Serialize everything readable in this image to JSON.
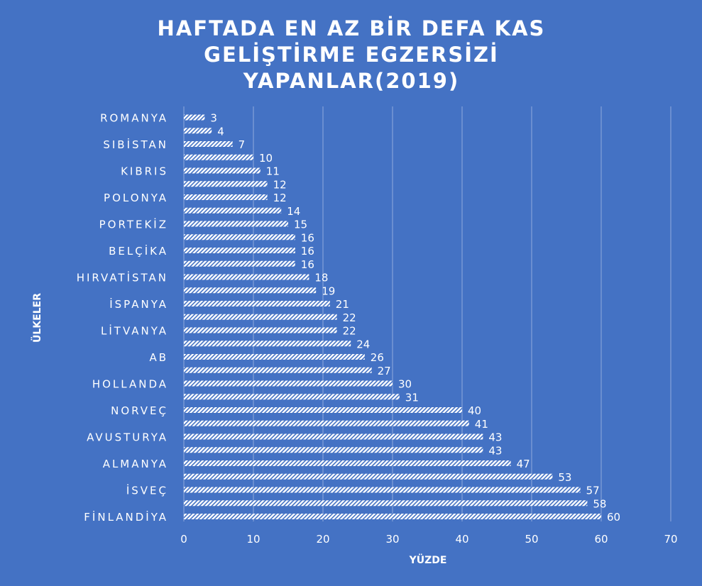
{
  "chart_data": {
    "type": "bar",
    "orientation": "horizontal",
    "title": "HAFTADA EN AZ BİR DEFA KAS GELİŞTİRME EGZERSİZİ YAPANLAR(2019)",
    "xlabel": "YÜZDE",
    "ylabel": "ÜLKELER",
    "xlim": [
      0,
      70
    ],
    "xticks": [
      0,
      10,
      20,
      30,
      40,
      50,
      60,
      70
    ],
    "grid": true,
    "legend": "none",
    "bar_pattern": "diagonal-hatch",
    "colors": {
      "background": "#4472C4",
      "bar": "#ffffff",
      "grid": "#8FA9DC",
      "text": "#ffffff"
    },
    "categories": [
      "ROMANYA",
      "",
      "SIBİSTAN",
      "",
      "KIBRIS",
      "",
      "POLONYA",
      "",
      "PORTEKİZ",
      "",
      "BELÇİKA",
      "",
      "HIRVATİSTAN",
      "",
      "İSPANYA",
      "",
      "LİTVANYA",
      "",
      "AB",
      "",
      "HOLLANDA",
      "",
      "NORVEÇ",
      "",
      "AVUSTURYA",
      "",
      "ALMANYA",
      "",
      "İSVEÇ",
      "",
      "FİNLANDİYA"
    ],
    "values": [
      3,
      4,
      7,
      10,
      11,
      12,
      12,
      14,
      15,
      16,
      16,
      16,
      18,
      19,
      21,
      22,
      22,
      24,
      26,
      27,
      30,
      31,
      40,
      41,
      43,
      43,
      47,
      53,
      57,
      58,
      60
    ]
  }
}
